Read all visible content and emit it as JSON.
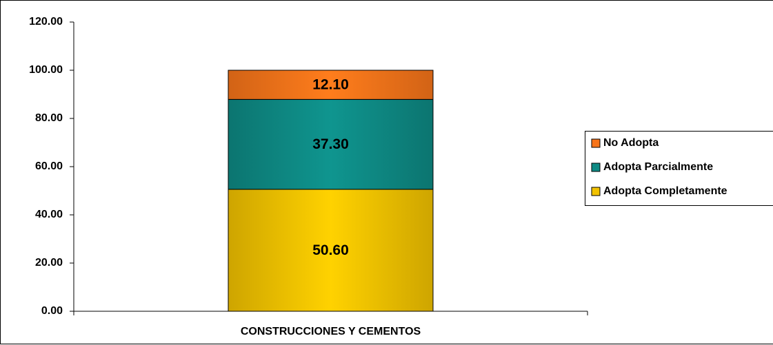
{
  "chart_data": {
    "type": "stacked_bar",
    "categories": [
      "CONSTRUCCIONES Y CEMENTOS"
    ],
    "series": [
      {
        "name": "Adopta Completamente",
        "color": "#f2c200",
        "values": [
          50.6
        ],
        "value_labels": [
          "50.60"
        ]
      },
      {
        "name": "Adopta Parcialmente",
        "color": "#0e8a84",
        "values": [
          37.3
        ],
        "value_labels": [
          "37.30"
        ]
      },
      {
        "name": "No Adopta",
        "color": "#f7741a",
        "values": [
          12.1
        ],
        "value_labels": [
          "12.10"
        ]
      }
    ],
    "ylim": [
      0,
      120
    ],
    "yticks": [
      {
        "value": 0,
        "label": "0.00"
      },
      {
        "value": 20,
        "label": "20.00"
      },
      {
        "value": 40,
        "label": "40.00"
      },
      {
        "value": 60,
        "label": "60.00"
      },
      {
        "value": 80,
        "label": "80.00"
      },
      {
        "value": 100,
        "label": "100.00"
      },
      {
        "value": 120,
        "label": "120.00"
      }
    ],
    "grid": false,
    "legend": "right"
  }
}
